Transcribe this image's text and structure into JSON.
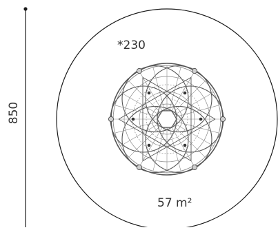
{
  "diagram": {
    "height_label": "850",
    "reference_label": "*230",
    "area_label": "57 m²",
    "colors": {
      "outline": "#1a1a1a",
      "structure": "#555555",
      "structure_light": "#8a8a8a",
      "text": "#333333"
    }
  }
}
